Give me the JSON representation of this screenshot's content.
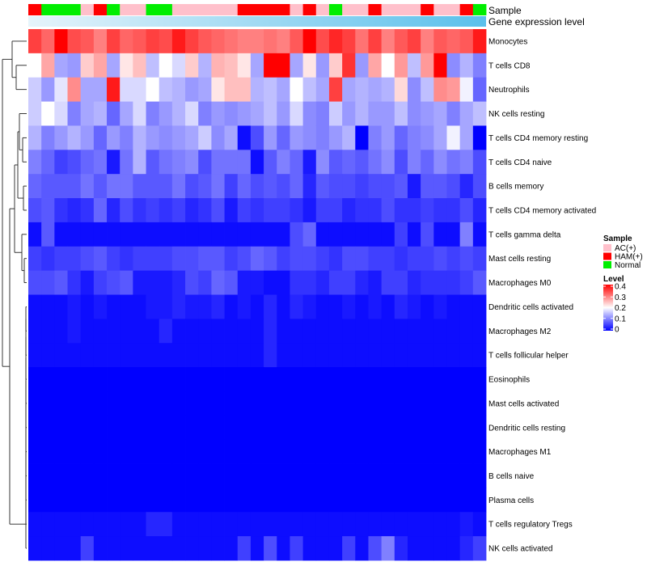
{
  "chart_data": {
    "type": "heatmap",
    "annotation_labels": [
      "Sample",
      "Gene expression level"
    ],
    "rows": [
      "Monocytes",
      "T cells CD8",
      "Neutrophils",
      "NK cells resting",
      "T cells CD4 memory resting",
      "T cells CD4 naive",
      "B cells memory",
      "T cells CD4 memory activated",
      "T cells gamma delta",
      "Mast cells resting",
      "Macrophages M0",
      "Dendritic cells activated",
      "Macrophages M2",
      "T cells follicular helper",
      "Eosinophils",
      "Mast cells activated",
      "Dendritic cells resting",
      "Macrophages M1",
      "B cells naive",
      "Plasma cells",
      "T cells regulatory  Tregs",
      "NK cells activated"
    ],
    "sample_groups": [
      "HAM(+)",
      "Normal",
      "Normal",
      "Normal",
      "AC(+)",
      "HAM(+)",
      "Normal",
      "AC(+)",
      "AC(+)",
      "Normal",
      "Normal",
      "AC(+)",
      "AC(+)",
      "AC(+)",
      "AC(+)",
      "AC(+)",
      "HAM(+)",
      "HAM(+)",
      "HAM(+)",
      "HAM(+)",
      "AC(+)",
      "HAM(+)",
      "AC(+)",
      "Normal",
      "AC(+)",
      "AC(+)",
      "HAM(+)",
      "AC(+)",
      "AC(+)",
      "AC(+)",
      "HAM(+)",
      "AC(+)",
      "AC(+)",
      "HAM(+)",
      "Normal"
    ],
    "values": [
      [
        0.35,
        0.32,
        0.4,
        0.34,
        0.33,
        0.3,
        0.35,
        0.32,
        0.33,
        0.35,
        0.34,
        0.38,
        0.35,
        0.33,
        0.32,
        0.31,
        0.3,
        0.3,
        0.31,
        0.3,
        0.33,
        0.4,
        0.34,
        0.37,
        0.35,
        0.31,
        0.35,
        0.3,
        0.33,
        0.35,
        0.3,
        0.33,
        0.32,
        0.33,
        0.38
      ],
      [
        0.2,
        0.27,
        0.13,
        0.12,
        0.24,
        0.27,
        0.13,
        0.22,
        0.25,
        0.15,
        0.2,
        0.17,
        0.24,
        0.14,
        0.26,
        0.25,
        0.22,
        0.13,
        0.4,
        0.4,
        0.13,
        0.22,
        0.12,
        0.24,
        0.36,
        0.12,
        0.27,
        0.2,
        0.28,
        0.15,
        0.28,
        0.4,
        0.11,
        0.14,
        0.1
      ],
      [
        0.16,
        0.12,
        0.18,
        0.29,
        0.13,
        0.13,
        0.38,
        0.17,
        0.17,
        0.2,
        0.15,
        0.14,
        0.12,
        0.13,
        0.22,
        0.25,
        0.25,
        0.14,
        0.15,
        0.13,
        0.2,
        0.15,
        0.13,
        0.35,
        0.13,
        0.14,
        0.13,
        0.14,
        0.23,
        0.11,
        0.15,
        0.29,
        0.28,
        0.19,
        0.08
      ],
      [
        0.16,
        0.2,
        0.17,
        0.1,
        0.13,
        0.14,
        0.08,
        0.13,
        0.17,
        0.1,
        0.12,
        0.14,
        0.17,
        0.1,
        0.12,
        0.11,
        0.12,
        0.13,
        0.15,
        0.12,
        0.17,
        0.11,
        0.1,
        0.16,
        0.12,
        0.14,
        0.12,
        0.12,
        0.15,
        0.11,
        0.12,
        0.13,
        0.1,
        0.13,
        0.15
      ],
      [
        0.14,
        0.1,
        0.12,
        0.14,
        0.12,
        0.08,
        0.12,
        0.1,
        0.14,
        0.12,
        0.11,
        0.12,
        0.13,
        0.16,
        0.11,
        0.13,
        0.01,
        0.06,
        0.12,
        0.08,
        0.12,
        0.11,
        0.1,
        0.12,
        0.14,
        0.0,
        0.1,
        0.12,
        0.08,
        0.1,
        0.11,
        0.13,
        0.19,
        0.13,
        0.0
      ],
      [
        0.1,
        0.08,
        0.05,
        0.06,
        0.08,
        0.09,
        0.02,
        0.09,
        0.14,
        0.07,
        0.09,
        0.1,
        0.11,
        0.06,
        0.09,
        0.09,
        0.09,
        0.01,
        0.07,
        0.1,
        0.08,
        0.02,
        0.11,
        0.07,
        0.08,
        0.07,
        0.09,
        0.11,
        0.06,
        0.1,
        0.08,
        0.11,
        0.09,
        0.1,
        0.06
      ],
      [
        0.08,
        0.07,
        0.07,
        0.07,
        0.09,
        0.07,
        0.09,
        0.09,
        0.07,
        0.07,
        0.07,
        0.09,
        0.06,
        0.07,
        0.09,
        0.05,
        0.08,
        0.06,
        0.07,
        0.06,
        0.08,
        0.03,
        0.07,
        0.06,
        0.06,
        0.05,
        0.06,
        0.06,
        0.07,
        0.02,
        0.07,
        0.07,
        0.06,
        0.03,
        0.06
      ],
      [
        0.06,
        0.07,
        0.04,
        0.03,
        0.04,
        0.08,
        0.03,
        0.06,
        0.04,
        0.05,
        0.04,
        0.05,
        0.03,
        0.04,
        0.06,
        0.02,
        0.05,
        0.04,
        0.05,
        0.05,
        0.04,
        0.02,
        0.05,
        0.05,
        0.03,
        0.04,
        0.04,
        0.06,
        0.04,
        0.04,
        0.05,
        0.04,
        0.04,
        0.06,
        0.03
      ],
      [
        0.01,
        0.07,
        0.01,
        0.01,
        0.01,
        0.01,
        0.01,
        0.01,
        0.01,
        0.01,
        0.01,
        0.01,
        0.01,
        0.01,
        0.01,
        0.01,
        0.01,
        0.01,
        0.01,
        0.01,
        0.06,
        0.08,
        0.01,
        0.01,
        0.01,
        0.01,
        0.01,
        0.01,
        0.05,
        0.01,
        0.06,
        0.01,
        0.01,
        0.1,
        0.01
      ],
      [
        0.05,
        0.04,
        0.05,
        0.05,
        0.06,
        0.07,
        0.05,
        0.04,
        0.05,
        0.05,
        0.05,
        0.06,
        0.06,
        0.07,
        0.07,
        0.05,
        0.06,
        0.08,
        0.07,
        0.05,
        0.06,
        0.06,
        0.05,
        0.04,
        0.06,
        0.06,
        0.05,
        0.05,
        0.04,
        0.05,
        0.05,
        0.06,
        0.05,
        0.06,
        0.05
      ],
      [
        0.06,
        0.06,
        0.07,
        0.04,
        0.02,
        0.05,
        0.06,
        0.07,
        0.02,
        0.02,
        0.02,
        0.03,
        0.06,
        0.05,
        0.08,
        0.07,
        0.02,
        0.02,
        0.01,
        0.01,
        0.04,
        0.04,
        0.03,
        0.05,
        0.05,
        0.03,
        0.02,
        0.05,
        0.05,
        0.03,
        0.04,
        0.04,
        0.04,
        0.05,
        0.07
      ],
      [
        0.01,
        0.01,
        0.01,
        0.02,
        0.01,
        0.02,
        0.01,
        0.01,
        0.01,
        0.02,
        0.02,
        0.03,
        0.02,
        0.02,
        0.03,
        0.01,
        0.02,
        0.01,
        0.03,
        0.01,
        0.03,
        0.02,
        0.01,
        0.01,
        0.02,
        0.01,
        0.02,
        0.01,
        0.03,
        0.02,
        0.01,
        0.02,
        0.01,
        0.01,
        0.01
      ],
      [
        0.01,
        0.01,
        0.01,
        0.02,
        0.01,
        0.01,
        0.01,
        0.01,
        0.01,
        0.01,
        0.03,
        0.01,
        0.01,
        0.01,
        0.01,
        0.01,
        0.01,
        0.01,
        0.03,
        0.01,
        0.01,
        0.01,
        0.01,
        0.01,
        0.01,
        0.01,
        0.01,
        0.01,
        0.01,
        0.01,
        0.01,
        0.01,
        0.01,
        0.01,
        0.01
      ],
      [
        0.01,
        0.01,
        0.01,
        0.01,
        0.01,
        0.01,
        0.01,
        0.01,
        0.01,
        0.01,
        0.01,
        0.01,
        0.01,
        0.01,
        0.01,
        0.01,
        0.01,
        0.01,
        0.03,
        0.01,
        0.01,
        0.01,
        0.01,
        0.01,
        0.01,
        0.01,
        0.01,
        0.01,
        0.01,
        0.01,
        0.01,
        0.01,
        0.01,
        0.01,
        0.01
      ],
      [
        0.0,
        0.0,
        0.0,
        0.0,
        0.0,
        0.0,
        0.0,
        0.0,
        0.0,
        0.0,
        0.0,
        0.0,
        0.0,
        0.0,
        0.0,
        0.0,
        0.0,
        0.0,
        0.0,
        0.0,
        0.0,
        0.0,
        0.0,
        0.0,
        0.0,
        0.0,
        0.0,
        0.0,
        0.0,
        0.0,
        0.0,
        0.0,
        0.0,
        0.0,
        0.0
      ],
      [
        0.0,
        0.0,
        0.0,
        0.0,
        0.0,
        0.0,
        0.0,
        0.0,
        0.0,
        0.0,
        0.0,
        0.0,
        0.0,
        0.0,
        0.0,
        0.0,
        0.0,
        0.0,
        0.0,
        0.0,
        0.0,
        0.0,
        0.0,
        0.0,
        0.0,
        0.0,
        0.0,
        0.0,
        0.0,
        0.0,
        0.0,
        0.0,
        0.0,
        0.0,
        0.0
      ],
      [
        0.0,
        0.0,
        0.0,
        0.0,
        0.0,
        0.0,
        0.0,
        0.0,
        0.0,
        0.0,
        0.0,
        0.0,
        0.0,
        0.0,
        0.0,
        0.0,
        0.0,
        0.0,
        0.0,
        0.0,
        0.0,
        0.0,
        0.0,
        0.0,
        0.0,
        0.0,
        0.0,
        0.0,
        0.0,
        0.0,
        0.0,
        0.0,
        0.0,
        0.0,
        0.0
      ],
      [
        0.0,
        0.0,
        0.0,
        0.0,
        0.0,
        0.0,
        0.0,
        0.0,
        0.0,
        0.0,
        0.0,
        0.0,
        0.0,
        0.0,
        0.0,
        0.0,
        0.0,
        0.0,
        0.0,
        0.0,
        0.0,
        0.0,
        0.0,
        0.0,
        0.0,
        0.0,
        0.0,
        0.0,
        0.0,
        0.0,
        0.0,
        0.0,
        0.0,
        0.0,
        0.0
      ],
      [
        0.0,
        0.0,
        0.0,
        0.0,
        0.0,
        0.0,
        0.0,
        0.0,
        0.0,
        0.0,
        0.0,
        0.0,
        0.0,
        0.0,
        0.0,
        0.0,
        0.0,
        0.0,
        0.0,
        0.0,
        0.0,
        0.0,
        0.0,
        0.0,
        0.0,
        0.0,
        0.0,
        0.0,
        0.0,
        0.0,
        0.0,
        0.0,
        0.0,
        0.0,
        0.0
      ],
      [
        0.0,
        0.0,
        0.0,
        0.0,
        0.0,
        0.0,
        0.0,
        0.0,
        0.0,
        0.0,
        0.0,
        0.0,
        0.0,
        0.0,
        0.0,
        0.0,
        0.0,
        0.0,
        0.0,
        0.0,
        0.0,
        0.0,
        0.0,
        0.0,
        0.0,
        0.0,
        0.0,
        0.0,
        0.0,
        0.0,
        0.0,
        0.0,
        0.0,
        0.0,
        0.0
      ],
      [
        0.01,
        0.01,
        0.01,
        0.01,
        0.01,
        0.01,
        0.01,
        0.01,
        0.01,
        0.03,
        0.03,
        0.01,
        0.01,
        0.01,
        0.01,
        0.01,
        0.01,
        0.01,
        0.01,
        0.01,
        0.01,
        0.01,
        0.01,
        0.01,
        0.01,
        0.01,
        0.01,
        0.01,
        0.01,
        0.01,
        0.01,
        0.01,
        0.01,
        0.02,
        0.01
      ],
      [
        0.01,
        0.01,
        0.01,
        0.01,
        0.05,
        0.01,
        0.01,
        0.01,
        0.01,
        0.01,
        0.01,
        0.01,
        0.01,
        0.01,
        0.01,
        0.01,
        0.05,
        0.01,
        0.06,
        0.01,
        0.05,
        0.01,
        0.01,
        0.01,
        0.05,
        0.01,
        0.06,
        0.1,
        0.03,
        0.01,
        0.01,
        0.01,
        0.01,
        0.03,
        0.05
      ]
    ],
    "legend_sample": {
      "title": "Sample",
      "items": [
        {
          "label": "AC(+)",
          "color": "#ffc0cb"
        },
        {
          "label": "HAM(+)",
          "color": "#ff0000"
        },
        {
          "label": "Normal",
          "color": "#00ee00"
        }
      ]
    },
    "legend_level": {
      "title": "Level",
      "ticks": [
        "0.4",
        "0.3",
        "0.2",
        "0.1",
        "0"
      ],
      "tick_values": [
        0.4,
        0.3,
        0.2,
        0.1,
        0
      ],
      "range": [
        0,
        0.4
      ]
    },
    "color_scale": {
      "low": "#0000ff",
      "mid": "#ffffff",
      "high": "#ff0000",
      "mid_value": 0.2
    },
    "gene_expression_bar": {
      "start_color": "#e6f4fb",
      "end_color": "#5bc0eb"
    }
  }
}
